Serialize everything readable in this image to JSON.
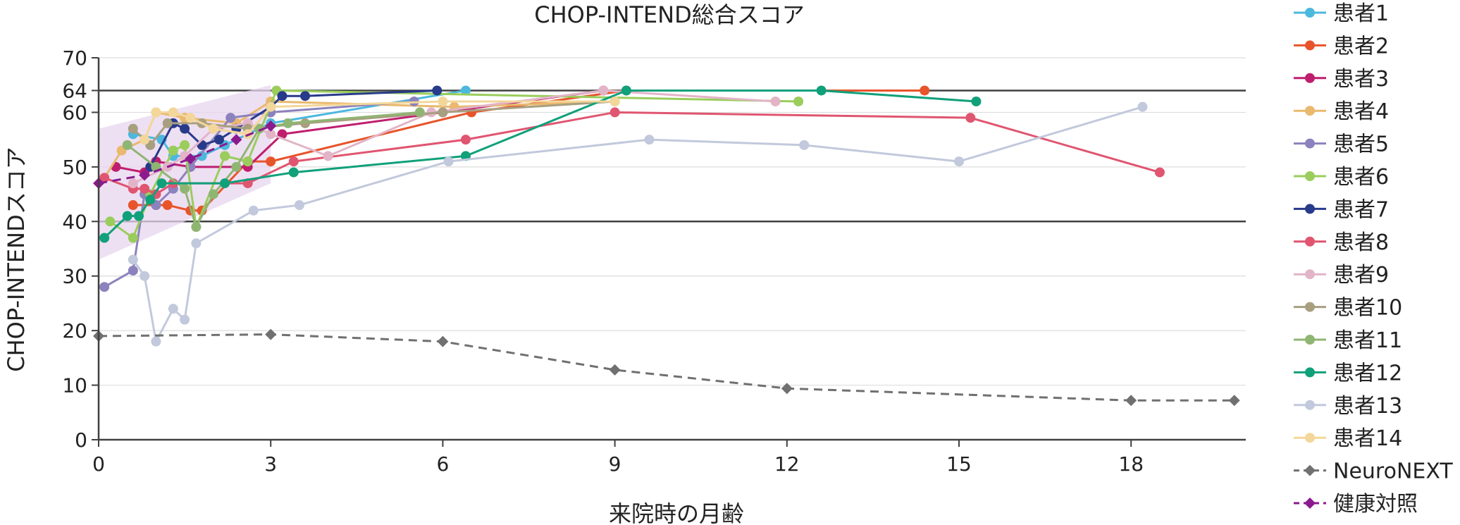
{
  "chart_data": {
    "type": "line",
    "title": "CHOP-INTEND総合スコア",
    "xlabel": "来院時の月齢",
    "ylabel": "CHOP-INTENDスコア",
    "xlim": [
      0,
      20
    ],
    "ylim": [
      0,
      70
    ],
    "xticks": [
      "0",
      "3",
      "6",
      "9",
      "12",
      "15",
      "18"
    ],
    "yticks": [
      "0",
      "10",
      "20",
      "30",
      "40",
      "50",
      "60",
      "64",
      "70"
    ],
    "reference_lines": [
      40,
      64
    ],
    "grid": true,
    "legend_position": "right",
    "healthy_band": {
      "x": [
        0,
        3
      ],
      "lower": [
        33,
        47
      ],
      "upper": [
        57,
        65
      ]
    },
    "series": [
      {
        "name": "患者1",
        "color": "#4CB8DE",
        "style": "solid",
        "x": [
          0.6,
          1.1,
          1.3,
          1.8,
          2.2,
          3.0,
          6.4
        ],
        "y": [
          56,
          55,
          52,
          52,
          54,
          58,
          64
        ]
      },
      {
        "name": "患者2",
        "color": "#E8542A",
        "style": "solid",
        "x": [
          0.6,
          1.0,
          1.2,
          1.6,
          1.8,
          2.6,
          3.0,
          6.5,
          9.2,
          14.4
        ],
        "y": [
          43,
          43,
          43,
          42,
          42,
          51,
          51,
          60,
          64,
          64
        ]
      },
      {
        "name": "患者3",
        "color": "#BF1E6E",
        "style": "solid",
        "x": [
          0.3,
          0.8,
          1.0,
          1.6,
          2.6,
          3.2,
          6.0,
          8.8
        ],
        "y": [
          50,
          49,
          51,
          50,
          50,
          56,
          60,
          64
        ]
      },
      {
        "name": "患者4",
        "color": "#E9B96E",
        "style": "solid",
        "x": [
          0.1,
          0.4,
          0.8,
          1.0,
          1.5,
          2.4,
          3.0,
          6.2,
          9.0
        ],
        "y": [
          48,
          53,
          55,
          60,
          59,
          58,
          62,
          61,
          62
        ]
      },
      {
        "name": "患者5",
        "color": "#8C82BD",
        "style": "solid",
        "x": [
          0.1,
          0.6,
          0.8,
          1.0,
          1.3,
          1.6,
          2.3,
          3.0,
          5.5
        ],
        "y": [
          28,
          31,
          45,
          43,
          46,
          50,
          59,
          60,
          62
        ]
      },
      {
        "name": "患者6",
        "color": "#9ACD5C",
        "style": "solid",
        "x": [
          0.2,
          0.6,
          0.9,
          1.3,
          1.5,
          1.7,
          2.2,
          2.6,
          3.1,
          12.2
        ],
        "y": [
          40,
          37,
          45,
          53,
          54,
          39,
          52,
          51,
          64,
          62
        ]
      },
      {
        "name": "患者7",
        "color": "#283A8A",
        "style": "solid",
        "x": [
          0.9,
          1.3,
          1.5,
          1.8,
          2.1,
          2.4,
          3.0,
          3.2,
          3.6,
          5.9
        ],
        "y": [
          50,
          58,
          57,
          54,
          55,
          57,
          61,
          63,
          63,
          64
        ]
      },
      {
        "name": "患者8",
        "color": "#E05570",
        "style": "solid",
        "x": [
          0.1,
          0.6,
          0.8,
          1.0,
          1.3,
          2.6,
          3.4,
          6.4,
          9.0,
          15.2,
          18.5
        ],
        "y": [
          48,
          46,
          46,
          45,
          47,
          47,
          51,
          55,
          60,
          59,
          49
        ]
      },
      {
        "name": "患者9",
        "color": "#E2B4C8",
        "style": "solid",
        "x": [
          0.6,
          1.2,
          1.5,
          2.0,
          2.6,
          3.0,
          4.0,
          5.8,
          8.8,
          11.8
        ],
        "y": [
          47,
          50,
          52,
          57,
          58,
          56,
          52,
          60,
          64,
          62
        ]
      },
      {
        "name": "患者10",
        "color": "#A89F80",
        "style": "solid",
        "x": [
          0.6,
          0.9,
          1.2,
          1.8,
          2.6,
          3.6,
          6.0,
          9.0
        ],
        "y": [
          57,
          54,
          58,
          58,
          57,
          58,
          60,
          62
        ]
      },
      {
        "name": "患者11",
        "color": "#8FB573",
        "style": "solid",
        "x": [
          0.5,
          1.0,
          1.5,
          1.7,
          2.0,
          2.4,
          2.8,
          3.3,
          5.6
        ],
        "y": [
          54,
          50,
          46,
          39,
          45,
          50,
          57,
          58,
          60
        ]
      },
      {
        "name": "患者12",
        "color": "#10A07A",
        "style": "solid",
        "x": [
          0.1,
          0.5,
          0.7,
          0.9,
          1.1,
          2.2,
          3.4,
          6.4,
          9.2,
          12.6,
          15.3
        ],
        "y": [
          37,
          41,
          41,
          44,
          47,
          47,
          49,
          52,
          64,
          64,
          62
        ]
      },
      {
        "name": "患者13",
        "color": "#C2C9DC",
        "style": "solid",
        "x": [
          0.6,
          0.8,
          1.0,
          1.3,
          1.5,
          1.7,
          2.7,
          3.5,
          6.1,
          9.6,
          12.3,
          15.0,
          18.2
        ],
        "y": [
          33,
          30,
          18,
          24,
          22,
          36,
          42,
          43,
          51,
          55,
          54,
          51,
          61
        ]
      },
      {
        "name": "患者14",
        "color": "#F3D79A",
        "style": "solid",
        "x": [
          0.8,
          1.0,
          1.3,
          1.6,
          2.0,
          2.6,
          3.0,
          6.0,
          9.0
        ],
        "y": [
          55,
          60,
          60,
          59,
          57,
          56,
          61,
          62,
          62
        ]
      },
      {
        "name": "NeuroNEXT",
        "color": "#707070",
        "style": "dashed",
        "marker": "diamond",
        "x": [
          0,
          3,
          6,
          9,
          12,
          18,
          19.8
        ],
        "y": [
          19,
          19.3,
          18,
          12.8,
          9.4,
          7.2,
          7.2
        ]
      },
      {
        "name": "健康対照",
        "color": "#8B1A8F",
        "style": "dashed",
        "marker": "diamond",
        "x": [
          0,
          0.8,
          1.6,
          2.4,
          3.0
        ],
        "y": [
          47,
          48.5,
          51.5,
          55,
          57.5
        ]
      }
    ]
  }
}
